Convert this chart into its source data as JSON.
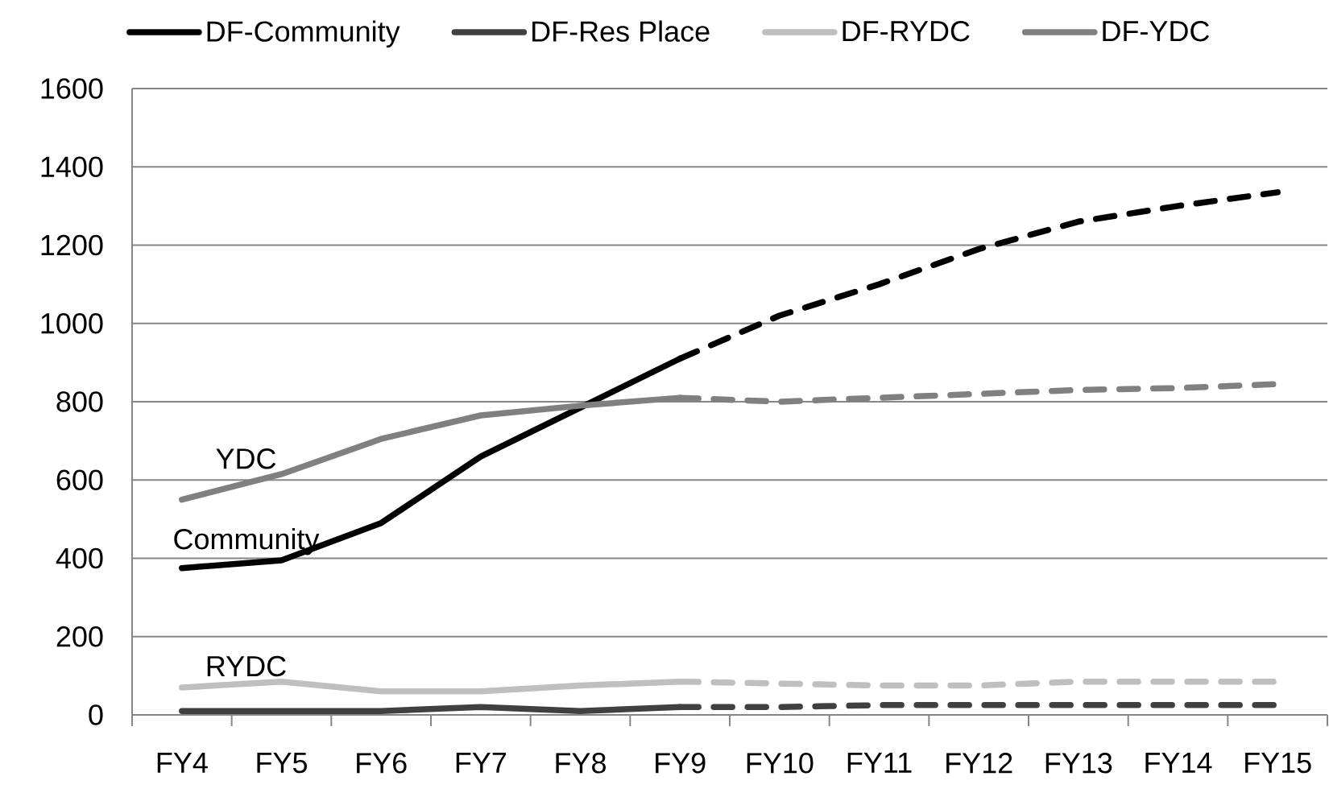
{
  "chart_data": {
    "type": "line",
    "categories": [
      "FY4",
      "FY5",
      "FY6",
      "FY7",
      "FY8",
      "FY9",
      "FY10",
      "FY11",
      "FY12",
      "FY13",
      "FY14",
      "FY15"
    ],
    "series": [
      {
        "name": "DF-Community",
        "color": "#000000",
        "line_style": "solid",
        "values": [
          375,
          395,
          490,
          660,
          785,
          910,
          null,
          null,
          null,
          null,
          null,
          null
        ]
      },
      {
        "name": "DF-Res Place",
        "color": "#404040",
        "line_style": "solid",
        "values": [
          10,
          10,
          10,
          20,
          10,
          20,
          null,
          null,
          null,
          null,
          null,
          null
        ]
      },
      {
        "name": "DF-RYDC",
        "color": "#bfbfbf",
        "line_style": "solid",
        "values": [
          70,
          85,
          60,
          60,
          75,
          85,
          null,
          null,
          null,
          null,
          null,
          null
        ]
      },
      {
        "name": "DF-YDC",
        "color": "#808080",
        "line_style": "solid",
        "values": [
          550,
          615,
          705,
          765,
          790,
          810,
          null,
          null,
          null,
          null,
          null,
          null
        ]
      },
      {
        "color": "#000000",
        "line_style": "dashed",
        "values": [
          null,
          null,
          null,
          null,
          null,
          910,
          1020,
          1100,
          1190,
          1260,
          1300,
          1335
        ]
      },
      {
        "color": "#404040",
        "line_style": "dashed",
        "values": [
          null,
          null,
          null,
          null,
          null,
          20,
          20,
          25,
          25,
          25,
          25,
          25
        ]
      },
      {
        "color": "#bfbfbf",
        "line_style": "dashed",
        "values": [
          null,
          null,
          null,
          null,
          null,
          85,
          80,
          75,
          75,
          85,
          85,
          85
        ]
      },
      {
        "color": "#808080",
        "line_style": "dashed",
        "values": [
          null,
          null,
          null,
          null,
          null,
          810,
          800,
          810,
          820,
          830,
          835,
          845
        ]
      }
    ],
    "ylim": [
      0,
      1600
    ],
    "yticks": [
      0,
      200,
      400,
      600,
      800,
      1000,
      1200,
      1400,
      1600
    ],
    "grid": "y",
    "legend": "top",
    "marker": "none",
    "annotations": [
      {
        "text": "YDC",
        "x": "FY5",
        "y": 615
      },
      {
        "text": "Community",
        "x": "FY5",
        "y": 395
      },
      {
        "text": "RYDC",
        "x": "FY5",
        "y": 85
      }
    ]
  }
}
